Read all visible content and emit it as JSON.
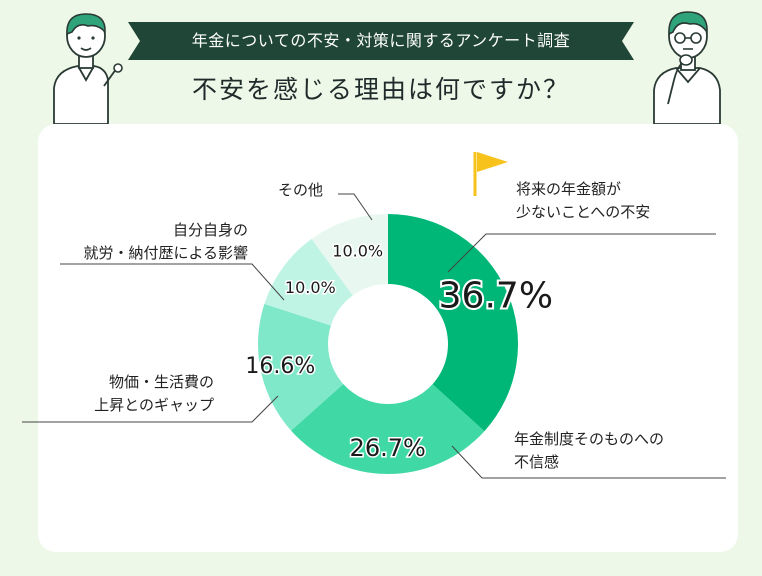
{
  "header": {
    "banner": "年金についての不安・対策に関するアンケート調査",
    "title": "不安を感じる理由は何ですか？"
  },
  "colors": {
    "background": "#eef8e8",
    "banner": "#1f4636",
    "flag": "#f7c21b",
    "slices": [
      "#00b778",
      "#40d9a5",
      "#7fe8c8",
      "#bff4e4",
      "#e8f8f1"
    ]
  },
  "chart_data": {
    "type": "pie",
    "title": "",
    "categories": [
      "将来の年金額が少ないことへの不安",
      "年金制度そのものへの不信感",
      "物価・生活費の上昇とのギャップ",
      "自分自身の就労・納付歴による影響",
      "その他"
    ],
    "values": [
      36.7,
      26.7,
      16.6,
      10.0,
      10.0
    ],
    "value_labels": [
      "36.7%",
      "26.7%",
      "16.6%",
      "10.0%",
      "10.0%"
    ],
    "legend_lines": [
      [
        "将来の年金額が",
        "少ないことへの不安"
      ],
      [
        "年金制度そのものへの",
        "不信感"
      ],
      [
        "物価・生活費の",
        "上昇とのギャップ"
      ],
      [
        "自分自身の",
        "就労・納付歴による影響"
      ],
      [
        "その他"
      ]
    ]
  }
}
